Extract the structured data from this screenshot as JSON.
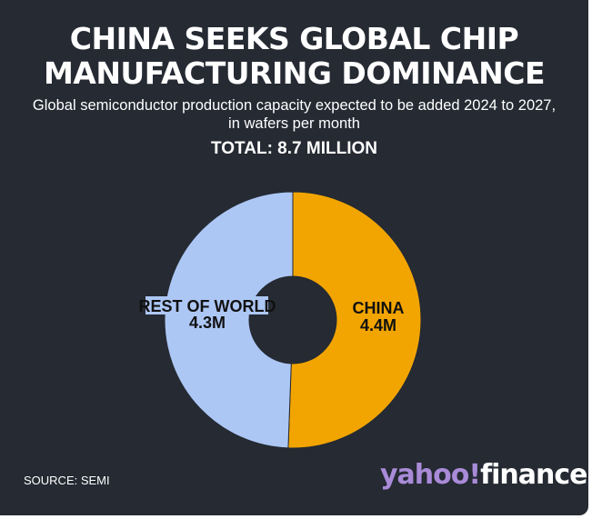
{
  "header": {
    "title_line1": "CHINA SEEKS GLOBAL CHIP",
    "title_line2": "MANUFACTURING DOMINANCE",
    "subtitle_line1": "Global semiconductor production capacity expected to be added 2024 to 2027,",
    "subtitle_line2": "in wafers per month",
    "total": "TOTAL: 8.7 MILLION"
  },
  "chart_data": {
    "type": "pie",
    "donut": true,
    "unit": "million wafers per month",
    "slices": [
      {
        "name": "CHINA",
        "value": 4.4,
        "label": "4.4M",
        "color": "#f2a500"
      },
      {
        "name": "REST OF WORLD",
        "value": 4.3,
        "label": "4.3M",
        "color": "#adc7f5"
      }
    ]
  },
  "footer": {
    "source": "SOURCE: SEMI",
    "logo_yahoo": "yahoo!",
    "logo_finance": "finance"
  },
  "colors": {
    "background": "#252a33"
  }
}
